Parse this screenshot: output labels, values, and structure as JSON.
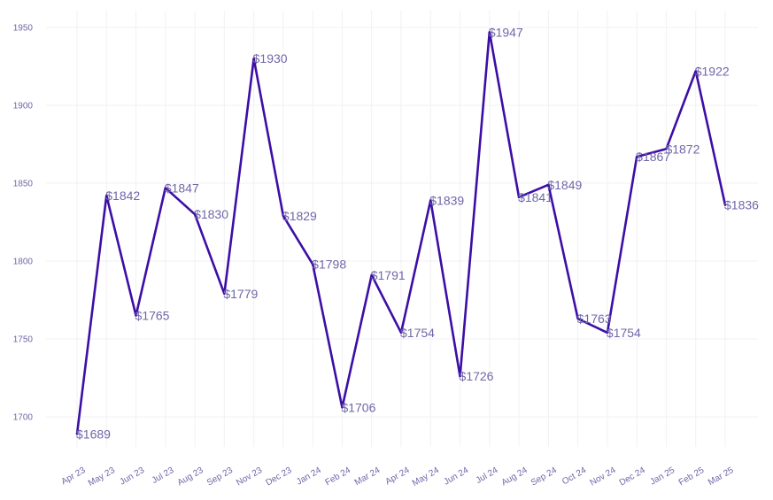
{
  "colors": {
    "line": "#3d0ea6",
    "label": "#6f67a8",
    "grid": "#f1f1f4"
  },
  "chart_data": {
    "type": "line",
    "title": "",
    "xlabel": "",
    "ylabel": "",
    "grid": true,
    "legend": "none",
    "ylim": [
      1680,
      1957
    ],
    "yticks": [
      1700,
      1750,
      1800,
      1850,
      1900,
      1950
    ],
    "categories": [
      "Apr 23",
      "May 23",
      "Jun 23",
      "Jul 23",
      "Aug 23",
      "Sep 23",
      "Nov 23",
      "Dec 23",
      "Jan 24",
      "Feb 24",
      "Mar 24",
      "Apr 24",
      "May 24",
      "Jun 24",
      "Jul 24",
      "Aug 24",
      "Sep 24",
      "Oct 24",
      "Nov 24",
      "Dec 24",
      "Jan 25",
      "Feb 25",
      "Mar 25"
    ],
    "series": [
      {
        "values": [
          1689,
          1842,
          1765,
          1847,
          1830,
          1779,
          1930,
          1829,
          1798,
          1706,
          1791,
          1754,
          1839,
          1726,
          1947,
          1841,
          1849,
          1763,
          1754,
          1867,
          1872,
          1922,
          1836
        ],
        "labels": [
          "$1689",
          "$1842",
          "$1765",
          "$1847",
          "$1830",
          "$1779",
          "$1930",
          "$1829",
          "$1798",
          "$1706",
          "$1791",
          "$1754",
          "$1839",
          "$1726",
          "$1947",
          "$1841",
          "$1849",
          "$1763",
          "$1754",
          "$1867",
          "$1872",
          "$1922",
          "$1836"
        ]
      }
    ]
  }
}
